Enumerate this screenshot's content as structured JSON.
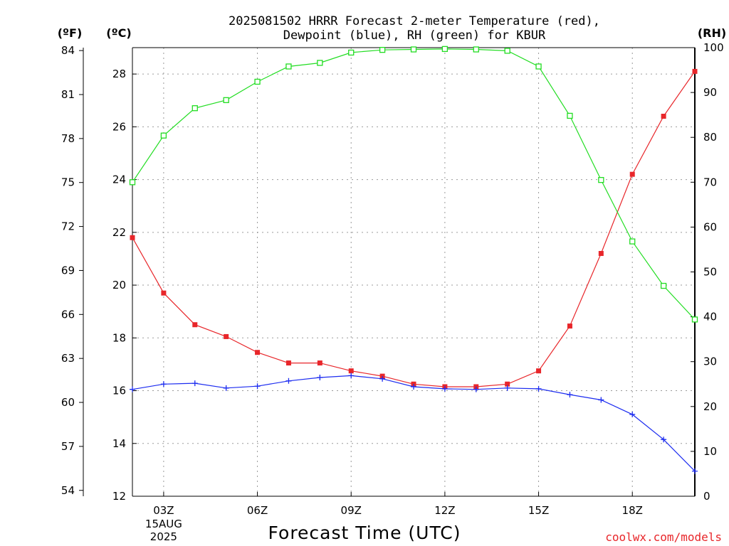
{
  "chart_data": {
    "type": "line",
    "title": [
      "2025081502 HRRR Forecast 2-meter Temperature (red),",
      "Dewpoint (blue), RH (green) for KBUR"
    ],
    "xlabel": "Forecast Time (UTC)",
    "credit": "coolwx.com/models",
    "x_hours": [
      2,
      3,
      4,
      5,
      6,
      7,
      8,
      9,
      10,
      11,
      12,
      13,
      14,
      15,
      16,
      17,
      18,
      19,
      20
    ],
    "x_range": [
      2,
      20
    ],
    "x_ticks": [
      {
        "hour": 3,
        "label": "03Z",
        "sub": [
          "15AUG",
          "2025"
        ]
      },
      {
        "hour": 6,
        "label": "06Z"
      },
      {
        "hour": 9,
        "label": "09Z"
      },
      {
        "hour": 12,
        "label": "12Z"
      },
      {
        "hour": 15,
        "label": "15Z"
      },
      {
        "hour": 18,
        "label": "18Z"
      }
    ],
    "axes": {
      "celsius": {
        "unit": "(ºC)",
        "range": [
          12,
          29
        ],
        "ticks": [
          12,
          14,
          16,
          18,
          20,
          22,
          24,
          26,
          28
        ]
      },
      "fahrenheit": {
        "unit": "(ºF)",
        "range": [
          53.6,
          84.2
        ],
        "ticks": [
          54,
          57,
          60,
          63,
          66,
          69,
          72,
          75,
          78,
          81,
          84
        ]
      },
      "rh": {
        "unit": "(RH)",
        "range": [
          0,
          100
        ],
        "ticks": [
          0,
          10,
          20,
          30,
          40,
          50,
          60,
          70,
          80,
          90,
          100
        ]
      }
    },
    "grid": true,
    "series": [
      {
        "name": "Temperature",
        "axis": "celsius",
        "color": "#e8262a",
        "marker": "filled-square",
        "values": [
          21.8,
          19.7,
          18.5,
          18.05,
          17.45,
          17.05,
          17.05,
          16.75,
          16.55,
          16.25,
          16.15,
          16.15,
          16.25,
          16.75,
          18.45,
          21.2,
          24.2,
          26.4,
          28.1
        ]
      },
      {
        "name": "Dewpoint",
        "axis": "celsius",
        "color": "#1c2cf0",
        "marker": "plus",
        "values": [
          16.05,
          16.25,
          16.28,
          16.1,
          16.17,
          16.37,
          16.5,
          16.57,
          16.45,
          16.15,
          16.07,
          16.05,
          16.1,
          16.07,
          15.85,
          15.65,
          15.1,
          14.15,
          12.95
        ]
      },
      {
        "name": "RH",
        "axis": "rh",
        "color": "#22dd22",
        "marker": "open-square",
        "values": [
          70,
          80.4,
          86.5,
          88.3,
          92.4,
          95.8,
          96.6,
          98.9,
          99.5,
          99.6,
          99.7,
          99.6,
          99.3,
          95.8,
          84.8,
          70.5,
          56.8,
          46.9,
          39.4
        ]
      }
    ]
  }
}
